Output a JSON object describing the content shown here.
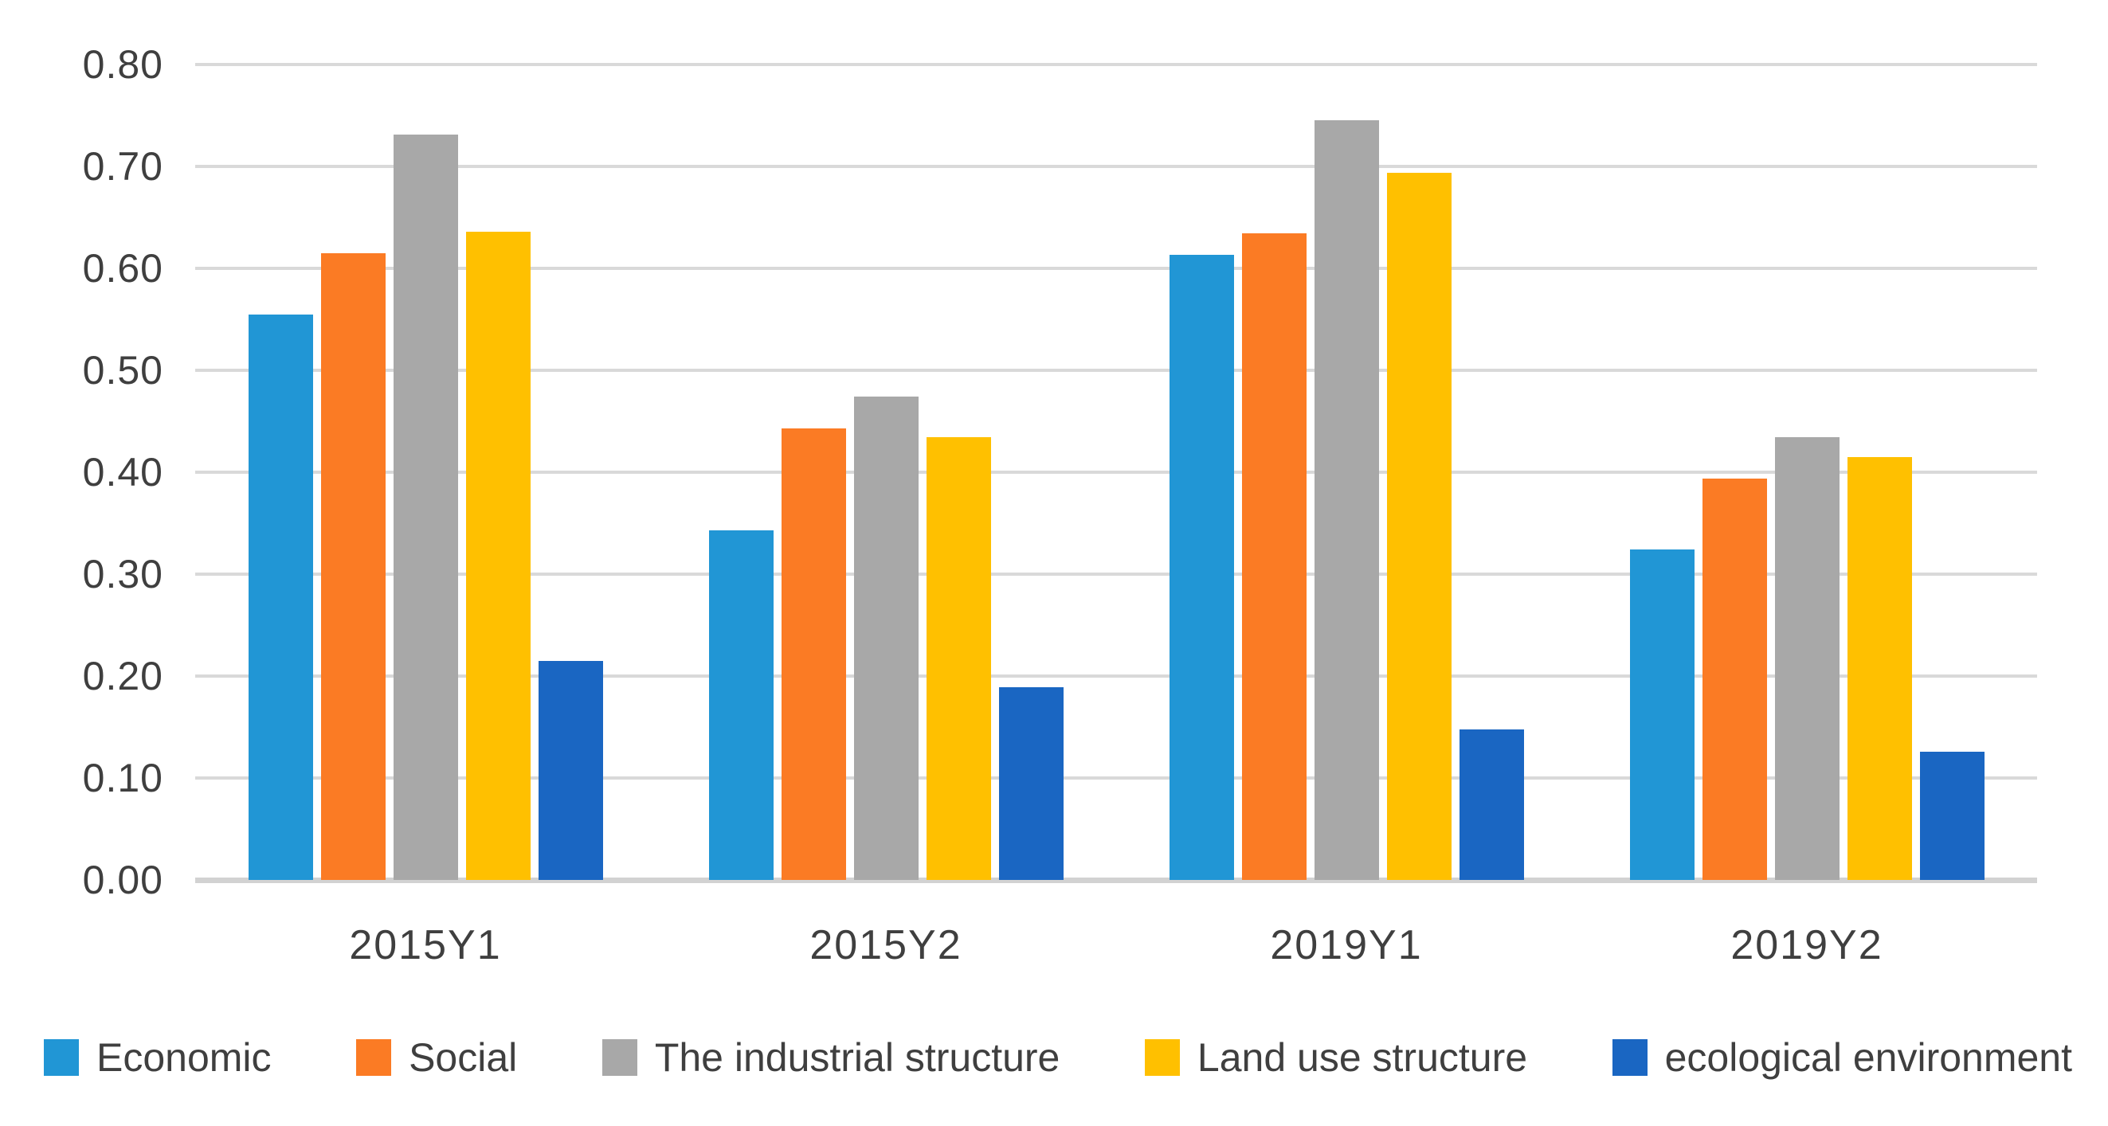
{
  "page": {
    "background_color": "#ffffff",
    "text_color": "#3f3f3f",
    "gridline_color": "#d9d9d9",
    "axis_line_color": "#d2d2d2"
  },
  "chart_data": {
    "type": "bar",
    "title": "",
    "categories": [
      "2015Y1",
      "2015Y2",
      "2019Y1",
      "2019Y2"
    ],
    "series": [
      {
        "name": "Economic",
        "color": "#2196d5",
        "values": [
          0.555,
          0.343,
          0.613,
          0.324
        ]
      },
      {
        "name": "Social",
        "color": "#fb7b24",
        "values": [
          0.615,
          0.443,
          0.634,
          0.394
        ]
      },
      {
        "name": "The industrial structure",
        "color": "#a8a8a8",
        "values": [
          0.731,
          0.474,
          0.745,
          0.434
        ]
      },
      {
        "name": "Land use structure",
        "color": "#ffc000",
        "values": [
          0.636,
          0.434,
          0.694,
          0.415
        ]
      },
      {
        "name": "ecological environment",
        "color": "#1a66c2",
        "values": [
          0.215,
          0.189,
          0.148,
          0.126
        ]
      }
    ],
    "ylim": [
      0,
      0.8
    ],
    "ytick_step": 0.1,
    "ytick_labels": [
      "0.00",
      "0.10",
      "0.20",
      "0.30",
      "0.40",
      "0.50",
      "0.60",
      "0.70",
      "0.80"
    ],
    "grid": true,
    "legend_position": "bottom",
    "legend_labels": [
      "Economic",
      "Social",
      "The industrial structure",
      "Land use structure",
      "ecological environment"
    ]
  }
}
